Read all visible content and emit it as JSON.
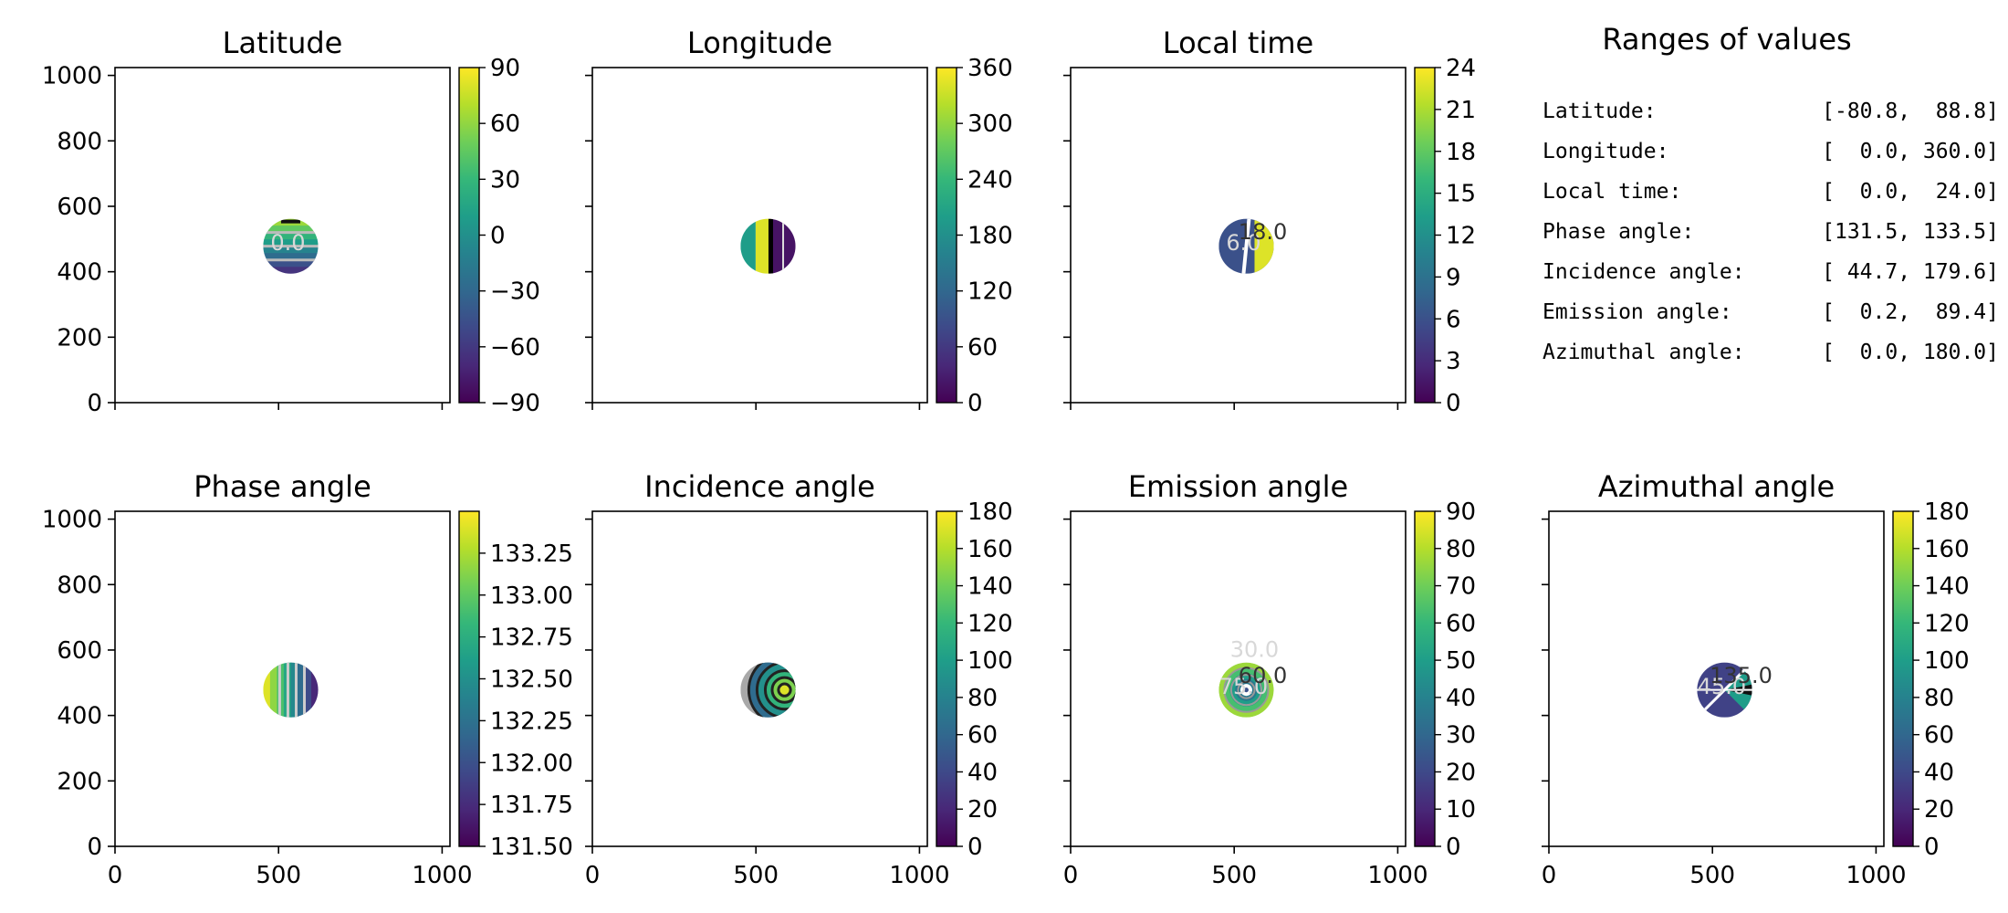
{
  "chart_data": [
    {
      "type": "heatmap",
      "title": "Latitude",
      "xlim": [
        0,
        1024
      ],
      "ylim": [
        0,
        1024
      ],
      "xticks": [
        0,
        500,
        1000
      ],
      "yticks": [
        0,
        200,
        400,
        600,
        800,
        1000
      ],
      "show_xticklabels": false,
      "show_yticklabels": true,
      "disk": {
        "cx": 537,
        "cy": 478,
        "r": 84
      },
      "colorbar": {
        "range": [
          -90,
          90
        ],
        "ticks": [
          -90,
          -60,
          -30,
          0,
          30,
          60,
          90
        ],
        "labels": [
          "−90",
          "−60",
          "−30",
          "0",
          "30",
          "60",
          "90"
        ]
      },
      "contour_labels": [
        "0.0"
      ]
    },
    {
      "type": "heatmap",
      "title": "Longitude",
      "xlim": [
        0,
        1024
      ],
      "ylim": [
        0,
        1024
      ],
      "xticks": [
        0,
        500,
        1000
      ],
      "yticks": [
        0,
        200,
        400,
        600,
        800,
        1000
      ],
      "show_xticklabels": false,
      "show_yticklabels": false,
      "disk": {
        "cx": 537,
        "cy": 478,
        "r": 84
      },
      "colorbar": {
        "range": [
          0,
          360
        ],
        "ticks": [
          0,
          60,
          120,
          180,
          240,
          300,
          360
        ],
        "labels": [
          "0",
          "60",
          "120",
          "180",
          "240",
          "300",
          "360"
        ]
      },
      "contour_labels": []
    },
    {
      "type": "heatmap",
      "title": "Local time",
      "xlim": [
        0,
        1024
      ],
      "ylim": [
        0,
        1024
      ],
      "xticks": [
        0,
        500,
        1000
      ],
      "yticks": [
        0,
        200,
        400,
        600,
        800,
        1000
      ],
      "show_xticklabels": false,
      "show_yticklabels": false,
      "disk": {
        "cx": 537,
        "cy": 478,
        "r": 84
      },
      "colorbar": {
        "range": [
          0,
          24
        ],
        "ticks": [
          0,
          3,
          6,
          9,
          12,
          15,
          18,
          21,
          24
        ],
        "labels": [
          "0",
          "3",
          "6",
          "9",
          "12",
          "15",
          "18",
          "21",
          "24"
        ]
      },
      "contour_labels": [
        "6.0",
        "18.0"
      ]
    },
    {
      "type": "heatmap",
      "title": "Phase angle",
      "xlim": [
        0,
        1024
      ],
      "ylim": [
        0,
        1024
      ],
      "xticks": [
        0,
        500,
        1000
      ],
      "yticks": [
        0,
        200,
        400,
        600,
        800,
        1000
      ],
      "show_xticklabels": true,
      "show_yticklabels": true,
      "disk": {
        "cx": 537,
        "cy": 478,
        "r": 84
      },
      "colorbar": {
        "range": [
          131.5,
          133.5
        ],
        "ticks": [
          131.5,
          131.75,
          132.0,
          132.25,
          132.5,
          132.75,
          133.0,
          133.25
        ],
        "labels": [
          "131.50",
          "131.75",
          "132.00",
          "132.25",
          "132.50",
          "132.75",
          "133.00",
          "133.25"
        ]
      },
      "contour_labels": []
    },
    {
      "type": "heatmap",
      "title": "Incidence angle",
      "xlim": [
        0,
        1024
      ],
      "ylim": [
        0,
        1024
      ],
      "xticks": [
        0,
        500,
        1000
      ],
      "yticks": [
        0,
        200,
        400,
        600,
        800,
        1000
      ],
      "show_xticklabels": true,
      "show_yticklabels": false,
      "disk": {
        "cx": 537,
        "cy": 478,
        "r": 84
      },
      "colorbar": {
        "range": [
          0,
          180
        ],
        "ticks": [
          0,
          20,
          40,
          60,
          80,
          100,
          120,
          140,
          160,
          180
        ],
        "labels": [
          "0",
          "20",
          "40",
          "60",
          "80",
          "100",
          "120",
          "140",
          "160",
          "180"
        ]
      },
      "contour_labels": []
    },
    {
      "type": "heatmap",
      "title": "Emission angle",
      "xlim": [
        0,
        1024
      ],
      "ylim": [
        0,
        1024
      ],
      "xticks": [
        0,
        500,
        1000
      ],
      "yticks": [
        0,
        200,
        400,
        600,
        800,
        1000
      ],
      "show_xticklabels": true,
      "show_yticklabels": false,
      "disk": {
        "cx": 537,
        "cy": 478,
        "r": 84
      },
      "colorbar": {
        "range": [
          0,
          90
        ],
        "ticks": [
          0,
          10,
          20,
          30,
          40,
          50,
          60,
          70,
          80,
          90
        ],
        "labels": [
          "0",
          "10",
          "20",
          "30",
          "40",
          "50",
          "60",
          "70",
          "80",
          "90"
        ]
      },
      "contour_labels": [
        "75.0",
        "60.0",
        "30.0"
      ]
    },
    {
      "type": "heatmap",
      "title": "Azimuthal angle",
      "xlim": [
        0,
        1024
      ],
      "ylim": [
        0,
        1024
      ],
      "xticks": [
        0,
        500,
        1000
      ],
      "yticks": [
        0,
        200,
        400,
        600,
        800,
        1000
      ],
      "show_xticklabels": true,
      "show_yticklabels": false,
      "disk": {
        "cx": 537,
        "cy": 478,
        "r": 84
      },
      "colorbar": {
        "range": [
          0,
          180
        ],
        "ticks": [
          0,
          20,
          40,
          60,
          80,
          100,
          120,
          140,
          160,
          180
        ],
        "labels": [
          "0",
          "20",
          "40",
          "60",
          "80",
          "100",
          "120",
          "140",
          "160",
          "180"
        ]
      },
      "contour_labels": [
        "45.0",
        "135.0"
      ]
    }
  ],
  "ranges_panel": {
    "title": "Ranges of values",
    "rows": [
      {
        "label": "Latitude:",
        "value": "[-80.8,  88.8]"
      },
      {
        "label": "Longitude:",
        "value": "[  0.0, 360.0]"
      },
      {
        "label": "Local time:",
        "value": "[  0.0,  24.0]"
      },
      {
        "label": "Phase angle:",
        "value": "[131.5, 133.5]"
      },
      {
        "label": "Incidence angle:",
        "value": "[ 44.7, 179.6]"
      },
      {
        "label": "Emission angle:",
        "value": "[  0.2,  89.4]"
      },
      {
        "label": "Azimuthal angle:",
        "value": "[  0.0, 180.0]"
      }
    ]
  },
  "colors": {
    "viridis": [
      "#440154",
      "#482878",
      "#3e4989",
      "#31688e",
      "#26828e",
      "#1f9e89",
      "#35b779",
      "#6ece58",
      "#b5de2b",
      "#fde725"
    ],
    "axis": "#000000"
  }
}
